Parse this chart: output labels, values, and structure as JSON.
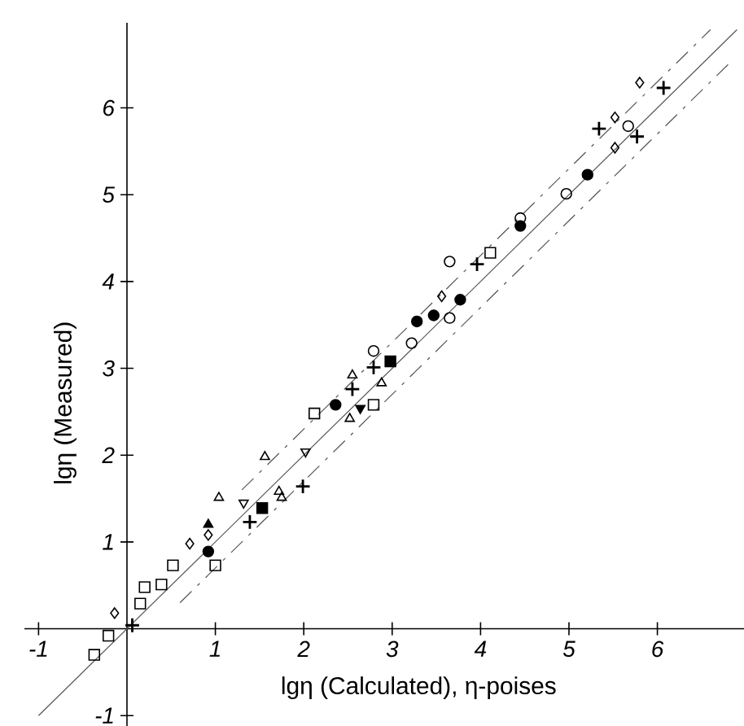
{
  "chart_data": {
    "type": "scatter",
    "xlabel": "lgη (Calculated), η-poises",
    "ylabel": "lgη (Measured)",
    "xlim": [
      -1.16,
      6.98
    ],
    "ylim": [
      -1.12,
      6.98
    ],
    "xticks": [
      {
        "value": -1,
        "label": "-1"
      },
      {
        "value": 0,
        "label": null
      },
      1,
      2,
      3,
      4,
      5,
      6
    ],
    "yticks": [
      {
        "value": -1,
        "label": "-1"
      },
      1,
      2,
      3,
      4,
      5,
      6
    ],
    "grid": false,
    "series": [
      {
        "type": "line",
        "marker": "none",
        "line_style": "solid",
        "color": "#555555",
        "x": [
          -1.0,
          6.9
        ],
        "values": [
          -1.0,
          6.9
        ]
      },
      {
        "type": "line",
        "marker": "none",
        "line_style": "dashed",
        "color": "#555555",
        "x": [
          1.3,
          6.6
        ],
        "values": [
          1.6,
          6.9
        ]
      },
      {
        "type": "line",
        "marker": "none",
        "line_style": "dashed",
        "color": "#555555",
        "x": [
          0.6,
          6.8
        ],
        "values": [
          0.3,
          6.5
        ]
      },
      {
        "marker": "square",
        "color": "#000000",
        "x": [
          -0.37,
          -0.21,
          0.15,
          0.2,
          0.39,
          0.52,
          1.0,
          2.12,
          2.79,
          4.11
        ],
        "values": [
          -0.3,
          -0.08,
          0.29,
          0.48,
          0.51,
          0.73,
          0.73,
          2.48,
          2.58,
          4.33
        ]
      },
      {
        "marker": "diamond",
        "color": "#000000",
        "x": [
          -0.14,
          0.71,
          0.92,
          3.56,
          5.52,
          5.52,
          5.8
        ],
        "values": [
          0.18,
          0.98,
          1.08,
          3.83,
          5.54,
          5.89,
          6.29
        ]
      },
      {
        "marker": "triangle",
        "color": "#000000",
        "x": [
          1.04,
          1.56,
          1.72,
          1.75,
          2.52,
          2.55,
          2.88
        ],
        "values": [
          1.51,
          1.98,
          1.58,
          1.51,
          2.42,
          2.92,
          2.83
        ]
      },
      {
        "marker": "triangle-filled",
        "color": "#000000",
        "x": [
          0.92
        ],
        "values": [
          1.2
        ]
      },
      {
        "marker": "triangle-down",
        "color": "#000000",
        "x": [
          1.32,
          2.02
        ],
        "values": [
          1.45,
          2.04
        ]
      },
      {
        "marker": "triangle-down-filled",
        "color": "#000000",
        "x": [
          2.64
        ],
        "values": [
          2.54
        ]
      },
      {
        "marker": "square-filled",
        "color": "#000000",
        "x": [
          1.53,
          2.98
        ],
        "values": [
          1.39,
          3.08
        ]
      },
      {
        "marker": "cross",
        "color": "#000000",
        "x": [
          0.06,
          1.39,
          1.99,
          2.55,
          2.79,
          3.96,
          5.34,
          5.77,
          6.07
        ],
        "values": [
          0.04,
          1.23,
          1.64,
          2.76,
          3.01,
          4.2,
          5.76,
          5.67,
          6.23
        ]
      },
      {
        "marker": "circle",
        "color": "#000000",
        "x": [
          2.79,
          3.22,
          3.65,
          3.65,
          4.45,
          4.97,
          5.67
        ],
        "values": [
          3.2,
          3.29,
          4.23,
          3.58,
          4.73,
          5.01,
          5.79
        ]
      },
      {
        "marker": "circle-filled",
        "color": "#000000",
        "x": [
          0.92,
          2.36,
          3.28,
          3.47,
          3.77,
          4.45,
          5.21
        ],
        "values": [
          0.89,
          2.58,
          3.54,
          3.61,
          3.79,
          4.64,
          5.23
        ]
      }
    ]
  }
}
